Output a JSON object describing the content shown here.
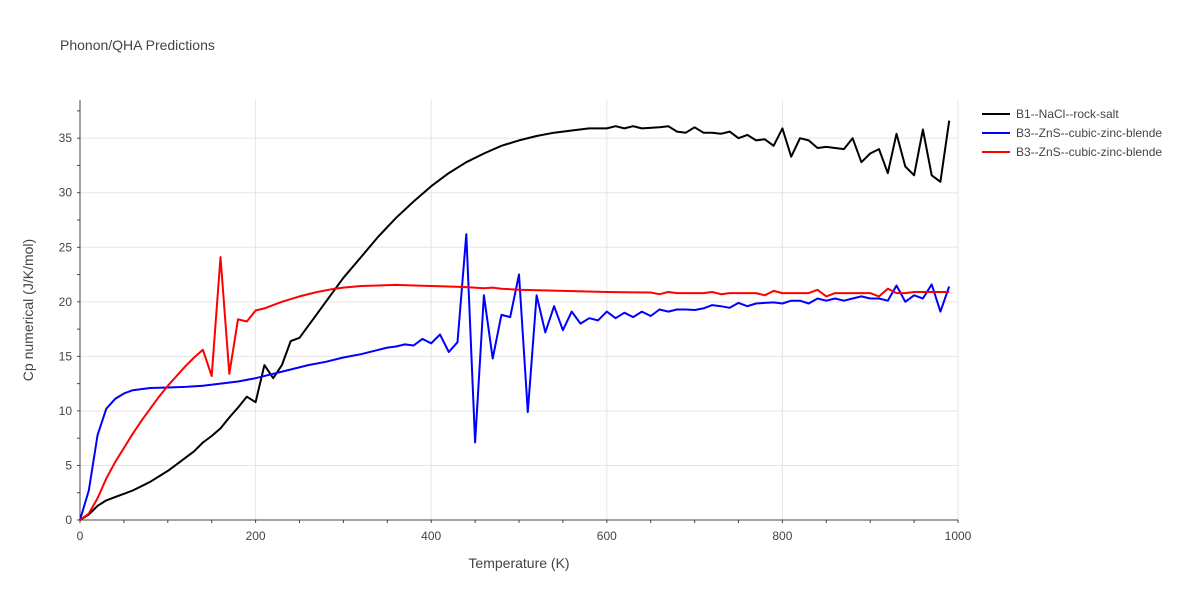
{
  "chart_data": {
    "type": "line",
    "title": "Phonon/QHA Predictions",
    "xlabel": "Temperature (K)",
    "ylabel": "Cp numerical (J/K/mol)",
    "xlim": [
      0,
      1000
    ],
    "ylim": [
      0,
      38.5
    ],
    "xticks": [
      0,
      200,
      400,
      600,
      800,
      1000
    ],
    "yticks": [
      0,
      5,
      10,
      15,
      20,
      25,
      30,
      35
    ],
    "grid": true,
    "legend_position": "top-right",
    "series": [
      {
        "name": "B1--NaCl--rock-salt",
        "color": "#000000",
        "x": [
          0,
          10,
          20,
          30,
          40,
          50,
          60,
          70,
          80,
          90,
          100,
          110,
          120,
          130,
          140,
          150,
          160,
          170,
          180,
          190,
          200,
          210,
          220,
          230,
          240,
          250,
          260,
          270,
          280,
          290,
          300,
          320,
          340,
          360,
          380,
          400,
          420,
          440,
          460,
          480,
          500,
          520,
          540,
          560,
          580,
          600,
          610,
          620,
          630,
          640,
          660,
          670,
          680,
          690,
          700,
          710,
          720,
          730,
          740,
          750,
          760,
          770,
          780,
          790,
          800,
          810,
          820,
          830,
          840,
          850,
          860,
          870,
          880,
          890,
          900,
          910,
          920,
          930,
          940,
          950,
          960,
          970,
          980,
          990
        ],
        "y": [
          0,
          0.5,
          1.3,
          1.8,
          2.1,
          2.4,
          2.7,
          3.1,
          3.5,
          4.0,
          4.5,
          5.1,
          5.7,
          6.3,
          7.1,
          7.7,
          8.4,
          9.4,
          10.3,
          11.3,
          10.8,
          14.2,
          13.0,
          14.2,
          16.4,
          16.7,
          17.8,
          18.9,
          20.0,
          21.1,
          22.2,
          24.1,
          26.0,
          27.7,
          29.2,
          30.6,
          31.8,
          32.8,
          33.6,
          34.3,
          34.8,
          35.2,
          35.5,
          35.7,
          35.9,
          35.9,
          36.1,
          35.9,
          36.1,
          35.9,
          36.0,
          36.1,
          35.6,
          35.5,
          36.0,
          35.5,
          35.5,
          35.4,
          35.6,
          35.0,
          35.3,
          34.8,
          34.9,
          34.3,
          35.9,
          33.3,
          35.0,
          34.8,
          34.1,
          34.2,
          34.1,
          34.0,
          35.0,
          32.8,
          33.6,
          34.0,
          31.8,
          35.4,
          32.4,
          31.6,
          35.8,
          31.6,
          31.0,
          36.6
        ]
      },
      {
        "name": "B3--ZnS--cubic-zinc-blende",
        "color": "#0000ff",
        "x": [
          0,
          10,
          20,
          30,
          40,
          50,
          60,
          70,
          80,
          100,
          120,
          140,
          160,
          180,
          200,
          220,
          240,
          260,
          280,
          300,
          320,
          340,
          350,
          360,
          370,
          380,
          390,
          400,
          410,
          420,
          430,
          440,
          450,
          460,
          470,
          480,
          490,
          500,
          510,
          520,
          530,
          540,
          550,
          560,
          570,
          580,
          590,
          600,
          610,
          620,
          630,
          640,
          650,
          660,
          670,
          680,
          690,
          700,
          710,
          720,
          730,
          740,
          750,
          760,
          770,
          780,
          790,
          800,
          810,
          820,
          830,
          840,
          850,
          860,
          870,
          880,
          890,
          900,
          910,
          920,
          930,
          940,
          950,
          960,
          970,
          980,
          990
        ],
        "y": [
          0,
          2.7,
          7.8,
          10.2,
          11.1,
          11.6,
          11.9,
          12.0,
          12.1,
          12.15,
          12.2,
          12.3,
          12.5,
          12.7,
          13.0,
          13.4,
          13.8,
          14.2,
          14.5,
          14.9,
          15.2,
          15.6,
          15.8,
          15.9,
          16.1,
          16.0,
          16.6,
          16.2,
          17.0,
          15.4,
          16.3,
          26.2,
          7.1,
          20.6,
          14.8,
          18.8,
          18.6,
          22.5,
          9.9,
          20.6,
          17.2,
          19.6,
          17.4,
          19.1,
          18.0,
          18.5,
          18.3,
          19.1,
          18.5,
          19.0,
          18.6,
          19.1,
          18.7,
          19.3,
          19.1,
          19.3,
          19.3,
          19.25,
          19.4,
          19.7,
          19.6,
          19.45,
          19.9,
          19.6,
          19.85,
          19.9,
          19.95,
          19.85,
          20.1,
          20.1,
          19.85,
          20.3,
          20.1,
          20.3,
          20.1,
          20.3,
          20.5,
          20.3,
          20.3,
          20.1,
          21.5,
          20.0,
          20.6,
          20.3,
          21.6,
          19.1,
          21.4
        ]
      },
      {
        "name": "B3--ZnS--cubic-zinc-blende",
        "color": "#ff0000",
        "x": [
          0,
          10,
          20,
          30,
          40,
          50,
          60,
          70,
          80,
          90,
          100,
          110,
          120,
          130,
          140,
          150,
          160,
          170,
          180,
          190,
          200,
          210,
          220,
          230,
          250,
          270,
          290,
          300,
          320,
          340,
          360,
          380,
          400,
          420,
          440,
          460,
          470,
          480,
          500,
          550,
          600,
          650,
          660,
          670,
          680,
          700,
          710,
          720,
          730,
          740,
          760,
          770,
          780,
          790,
          800,
          810,
          820,
          830,
          840,
          850,
          860,
          870,
          880,
          890,
          900,
          910,
          920,
          930,
          940,
          950,
          960,
          970,
          980,
          990
        ],
        "y": [
          0,
          0.6,
          2.0,
          3.8,
          5.3,
          6.6,
          7.9,
          9.1,
          10.2,
          11.3,
          12.3,
          13.2,
          14.1,
          14.9,
          15.6,
          13.2,
          24.1,
          13.4,
          18.4,
          18.2,
          19.2,
          19.4,
          19.7,
          20.0,
          20.5,
          20.9,
          21.2,
          21.3,
          21.45,
          21.5,
          21.55,
          21.5,
          21.45,
          21.4,
          21.35,
          21.25,
          21.3,
          21.2,
          21.1,
          21.0,
          20.9,
          20.85,
          20.7,
          20.9,
          20.8,
          20.8,
          20.8,
          20.9,
          20.7,
          20.8,
          20.8,
          20.8,
          20.6,
          21.0,
          20.8,
          20.8,
          20.8,
          20.8,
          21.1,
          20.5,
          20.8,
          20.8,
          20.8,
          20.8,
          20.8,
          20.5,
          21.2,
          20.8,
          20.8,
          20.9,
          20.9,
          20.9,
          20.9,
          20.9
        ]
      }
    ]
  }
}
